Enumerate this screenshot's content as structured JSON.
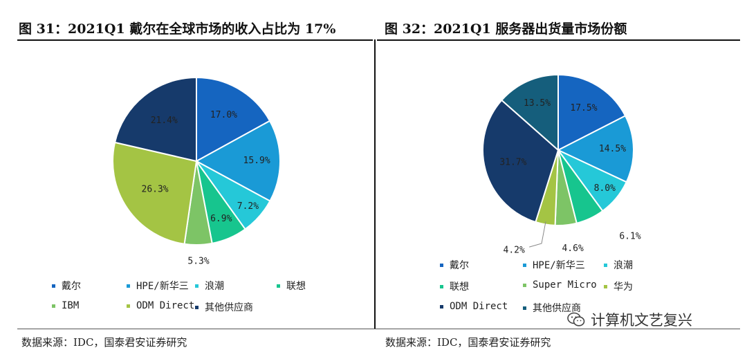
{
  "titles": {
    "left": "图 31：2021Q1 戴尔在全球市场的收入占比为 17%",
    "right": "图 32：2021Q1 服务器出货量市场份额"
  },
  "sources": {
    "left": "数据来源：IDC，国泰君安证券研究",
    "right": "数据来源：IDC，国泰君安证券研究"
  },
  "watermark": {
    "text": "计算机文艺复兴",
    "icon": "wechat-icon"
  },
  "chart_data": [
    {
      "type": "pie",
      "title": "2021Q1 戴尔在全球市场的收入占比为 17%",
      "categories": [
        "戴尔",
        "HPE/新华三",
        "浪潮",
        "联想",
        "IBM",
        "ODM Direct",
        "其他供应商"
      ],
      "values": [
        17.0,
        15.9,
        7.2,
        6.9,
        5.3,
        26.3,
        21.4
      ],
      "labels": [
        "17.0%",
        "15.9%",
        "7.2%",
        "6.9%",
        "5.3%",
        "26.3%",
        "21.4%"
      ],
      "colors": [
        "#1565c0",
        "#1a9ad6",
        "#25c8d8",
        "#17c58e",
        "#7dc466",
        "#a4c444",
        "#163a6b"
      ],
      "legend": "bottom"
    },
    {
      "type": "pie",
      "title": "2021Q1 服务器出货量市场份额",
      "categories": [
        "戴尔",
        "HPE/新华三",
        "浪潮",
        "联想",
        "Super Micro",
        "华为",
        "ODM Direct",
        "其他供应商"
      ],
      "values": [
        17.5,
        14.5,
        8.0,
        6.1,
        4.6,
        4.2,
        31.7,
        13.5
      ],
      "labels": [
        "17.5%",
        "14.5%",
        "8.0%",
        "6.1%",
        "4.6%",
        "4.2%",
        "31.7%",
        "13.5%"
      ],
      "colors": [
        "#1565c0",
        "#1a9ad6",
        "#25c8d8",
        "#17c58e",
        "#7dc466",
        "#a4c444",
        "#163a6b",
        "#155e7c"
      ],
      "legend": "bottom"
    }
  ]
}
